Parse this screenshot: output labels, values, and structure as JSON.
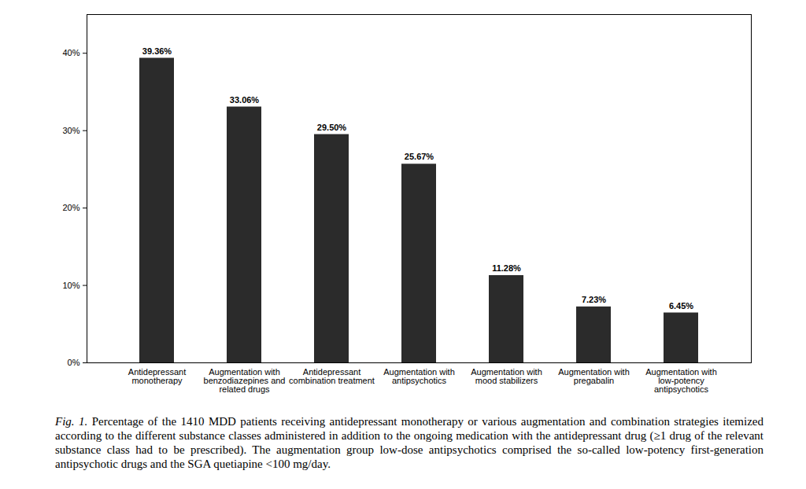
{
  "chart_data": {
    "type": "bar",
    "categories": [
      "Antidepressant\nmonotherapy",
      "Augmentation with\nbenzodiazepines and\nrelated drugs",
      "Antidepressant\ncombination treatment",
      "Augmentation with\nantipsychotics",
      "Augmentation with\nmood stabilizers",
      "Augmentation with\npregabalin",
      "Augmentation with\nlow-potency\nantipsychotics"
    ],
    "values": [
      39.36,
      33.06,
      29.5,
      25.67,
      11.28,
      7.23,
      6.45
    ],
    "value_labels": [
      "39.36%",
      "33.06%",
      "29.50%",
      "25.67%",
      "11.28%",
      "7.23%",
      "6.45%"
    ],
    "color": "#2b2b2b",
    "ylim": [
      0,
      45
    ],
    "yticks": [
      {
        "value": 0,
        "label": "0%"
      },
      {
        "value": 10,
        "label": "10%"
      },
      {
        "value": 20,
        "label": "20%"
      },
      {
        "value": 30,
        "label": "30%"
      },
      {
        "value": 40,
        "label": "40%"
      }
    ],
    "grid": false,
    "data_labels": true,
    "caption": "Fig. 1. Percentage of the 1410 MDD patients receiving antidepressant monotherapy or various augmentation and combination strategies itemized according to the different substance classes administered in addition to the ongoing medication with the antidepressant drug (≥1 drug of the relevant substance class had to be prescribed). The augmentation group low-dose antipsychotics comprised the so-called low-potency first-generation antipsychotic drugs and the SGA quetiapine <100 mg/day."
  }
}
